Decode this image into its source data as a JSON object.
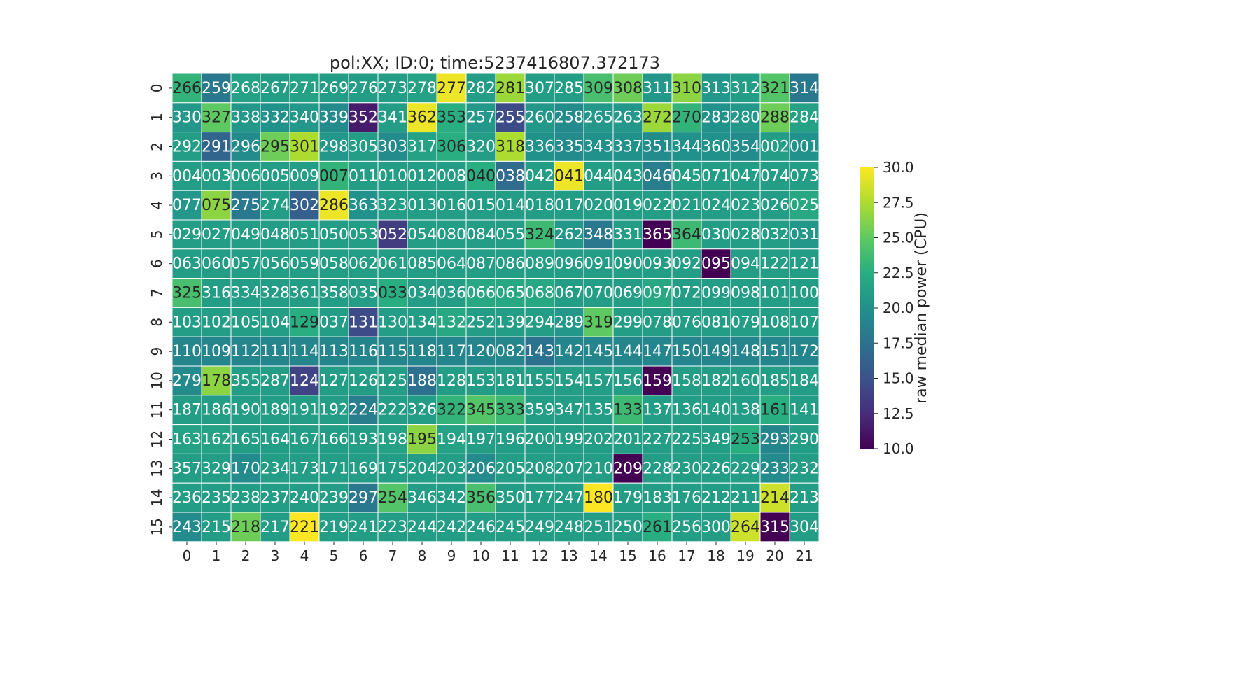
{
  "chart_data": {
    "type": "heatmap",
    "title": "pol:XX; ID:0; time:5237416807.372173",
    "xlabel": "",
    "ylabel": "",
    "x_categories": [
      "0",
      "1",
      "2",
      "3",
      "4",
      "5",
      "6",
      "7",
      "8",
      "9",
      "10",
      "11",
      "12",
      "13",
      "14",
      "15",
      "16",
      "17",
      "18",
      "19",
      "20",
      "21"
    ],
    "y_categories": [
      "0",
      "1",
      "2",
      "3",
      "4",
      "5",
      "6",
      "7",
      "8",
      "9",
      "10",
      "11",
      "12",
      "13",
      "14",
      "15"
    ],
    "colormap": "viridis",
    "colorbar": {
      "label": "raw median power (CPU)",
      "range": [
        10.0,
        30.0
      ],
      "ticks": [
        "10.0",
        "12.5",
        "15.0",
        "17.5",
        "20.0",
        "22.5",
        "25.0",
        "27.5",
        "30.0"
      ]
    },
    "annotations": [
      [
        "266",
        "259",
        "268",
        "267",
        "271",
        "269",
        "276",
        "273",
        "278",
        "277",
        "282",
        "281",
        "307",
        "285",
        "309",
        "308",
        "311",
        "310",
        "313",
        "312",
        "321",
        "314"
      ],
      [
        "330",
        "327",
        "338",
        "332",
        "340",
        "339",
        "352",
        "341",
        "362",
        "353",
        "257",
        "255",
        "260",
        "258",
        "265",
        "263",
        "272",
        "270",
        "283",
        "280",
        "288",
        "284"
      ],
      [
        "292",
        "291",
        "296",
        "295",
        "301",
        "298",
        "305",
        "303",
        "317",
        "306",
        "320",
        "318",
        "336",
        "335",
        "343",
        "337",
        "351",
        "344",
        "360",
        "354",
        "002",
        "001"
      ],
      [
        "004",
        "003",
        "006",
        "005",
        "009",
        "007",
        "011",
        "010",
        "012",
        "008",
        "040",
        "038",
        "042",
        "041",
        "044",
        "043",
        "046",
        "045",
        "071",
        "047",
        "074",
        "073"
      ],
      [
        "077",
        "075",
        "275",
        "274",
        "302",
        "286",
        "363",
        "323",
        "013",
        "016",
        "015",
        "014",
        "018",
        "017",
        "020",
        "019",
        "022",
        "021",
        "024",
        "023",
        "026",
        "025"
      ],
      [
        "029",
        "027",
        "049",
        "048",
        "051",
        "050",
        "053",
        "052",
        "054",
        "080",
        "084",
        "055",
        "324",
        "262",
        "348",
        "331",
        "365",
        "364",
        "030",
        "028",
        "032",
        "031"
      ],
      [
        "063",
        "060",
        "057",
        "056",
        "059",
        "058",
        "062",
        "061",
        "085",
        "064",
        "087",
        "086",
        "089",
        "096",
        "091",
        "090",
        "093",
        "092",
        "095",
        "094",
        "122",
        "121"
      ],
      [
        "325",
        "316",
        "334",
        "328",
        "361",
        "358",
        "035",
        "033",
        "034",
        "036",
        "066",
        "065",
        "068",
        "067",
        "070",
        "069",
        "097",
        "072",
        "099",
        "098",
        "101",
        "100"
      ],
      [
        "103",
        "102",
        "105",
        "104",
        "129",
        "037",
        "131",
        "130",
        "134",
        "132",
        "252",
        "139",
        "294",
        "289",
        "319",
        "299",
        "078",
        "076",
        "081",
        "079",
        "108",
        "107"
      ],
      [
        "110",
        "109",
        "112",
        "111",
        "114",
        "113",
        "116",
        "115",
        "118",
        "117",
        "120",
        "082",
        "143",
        "142",
        "145",
        "144",
        "147",
        "150",
        "149",
        "148",
        "151",
        "172"
      ],
      [
        "279",
        "178",
        "355",
        "287",
        "124",
        "127",
        "126",
        "125",
        "188",
        "128",
        "153",
        "181",
        "155",
        "154",
        "157",
        "156",
        "159",
        "158",
        "182",
        "160",
        "185",
        "184"
      ],
      [
        "187",
        "186",
        "190",
        "189",
        "191",
        "192",
        "224",
        "222",
        "326",
        "322",
        "345",
        "333",
        "359",
        "347",
        "135",
        "133",
        "137",
        "136",
        "140",
        "138",
        "161",
        "141"
      ],
      [
        "163",
        "162",
        "165",
        "164",
        "167",
        "166",
        "193",
        "198",
        "195",
        "194",
        "197",
        "196",
        "200",
        "199",
        "202",
        "201",
        "227",
        "225",
        "349",
        "253",
        "293",
        "290"
      ],
      [
        "357",
        "329",
        "170",
        "234",
        "173",
        "171",
        "169",
        "175",
        "204",
        "203",
        "206",
        "205",
        "208",
        "207",
        "210",
        "209",
        "228",
        "230",
        "226",
        "229",
        "233",
        "232"
      ],
      [
        "236",
        "235",
        "238",
        "237",
        "240",
        "239",
        "297",
        "254",
        "346",
        "342",
        "356",
        "350",
        "177",
        "247",
        "180",
        "179",
        "183",
        "176",
        "212",
        "211",
        "214",
        "213"
      ],
      [
        "243",
        "215",
        "218",
        "217",
        "221",
        "219",
        "241",
        "223",
        "244",
        "242",
        "246",
        "245",
        "249",
        "248",
        "251",
        "250",
        "261",
        "256",
        "300",
        "264",
        "315",
        "304"
      ]
    ],
    "values": [
      [
        23.0,
        18.0,
        21.5,
        21.0,
        21.5,
        21.0,
        21.0,
        21.0,
        21.5,
        29.5,
        21.0,
        27.0,
        21.0,
        21.0,
        24.0,
        25.5,
        20.5,
        26.5,
        20.5,
        21.0,
        24.5,
        18.0
      ],
      [
        20.5,
        25.0,
        20.5,
        20.0,
        20.5,
        19.5,
        11.5,
        21.0,
        29.5,
        22.5,
        20.5,
        14.5,
        20.5,
        19.5,
        20.5,
        20.5,
        27.0,
        23.0,
        20.0,
        20.5,
        25.5,
        21.5
      ],
      [
        21.0,
        16.5,
        19.5,
        25.5,
        27.5,
        20.5,
        21.0,
        19.5,
        21.5,
        22.5,
        21.0,
        27.5,
        20.0,
        19.5,
        20.0,
        20.0,
        19.5,
        20.0,
        20.0,
        19.5,
        21.0,
        20.0
      ],
      [
        21.0,
        21.0,
        21.0,
        21.0,
        21.0,
        23.0,
        21.0,
        21.0,
        21.0,
        21.0,
        22.5,
        17.0,
        21.0,
        29.5,
        21.0,
        21.0,
        18.5,
        21.0,
        21.0,
        21.0,
        21.0,
        21.0
      ],
      [
        20.5,
        26.5,
        18.0,
        21.0,
        16.0,
        29.5,
        20.0,
        21.0,
        21.0,
        21.0,
        21.0,
        21.0,
        21.0,
        21.0,
        21.0,
        21.0,
        21.0,
        21.0,
        21.0,
        21.0,
        21.0,
        22.0
      ],
      [
        21.0,
        21.0,
        21.0,
        21.0,
        21.0,
        21.0,
        21.0,
        13.5,
        21.0,
        21.0,
        21.0,
        21.0,
        23.5,
        20.5,
        18.0,
        21.0,
        10.0,
        23.5,
        21.0,
        21.0,
        21.0,
        20.5
      ],
      [
        21.0,
        21.0,
        21.0,
        21.0,
        21.0,
        21.0,
        21.0,
        21.0,
        21.0,
        21.0,
        21.0,
        21.0,
        21.0,
        21.0,
        21.0,
        21.0,
        21.0,
        21.0,
        10.0,
        21.0,
        21.0,
        21.0
      ],
      [
        24.0,
        21.0,
        21.0,
        21.0,
        21.0,
        21.0,
        21.0,
        22.5,
        21.0,
        21.0,
        22.0,
        22.0,
        22.0,
        21.0,
        21.0,
        21.0,
        22.0,
        21.0,
        21.0,
        21.0,
        21.0,
        21.0
      ],
      [
        21.0,
        21.0,
        21.0,
        21.0,
        22.5,
        21.0,
        14.5,
        21.0,
        21.0,
        22.0,
        21.0,
        21.0,
        21.0,
        20.5,
        25.0,
        21.0,
        21.0,
        21.0,
        21.0,
        21.0,
        21.0,
        21.0
      ],
      [
        19.0,
        19.0,
        19.0,
        19.0,
        19.0,
        19.0,
        19.0,
        19.0,
        19.0,
        19.0,
        19.0,
        19.0,
        17.5,
        19.0,
        19.0,
        19.0,
        19.0,
        19.0,
        19.0,
        19.0,
        19.0,
        19.0
      ],
      [
        19.5,
        26.5,
        21.0,
        21.0,
        14.0,
        21.0,
        21.0,
        21.0,
        17.5,
        21.0,
        21.0,
        21.0,
        21.0,
        21.0,
        21.0,
        21.0,
        10.0,
        21.0,
        21.0,
        21.0,
        21.0,
        21.0
      ],
      [
        21.0,
        21.0,
        21.0,
        21.0,
        21.0,
        21.0,
        18.5,
        21.0,
        21.0,
        23.0,
        24.5,
        23.5,
        21.0,
        21.0,
        21.0,
        23.5,
        21.0,
        21.0,
        21.0,
        21.0,
        22.5,
        21.0
      ],
      [
        21.5,
        21.5,
        21.0,
        21.0,
        21.0,
        21.0,
        21.0,
        21.5,
        26.5,
        21.5,
        21.0,
        21.0,
        21.0,
        21.0,
        21.0,
        21.0,
        21.0,
        21.0,
        21.0,
        22.5,
        19.0,
        21.0
      ],
      [
        21.0,
        21.0,
        19.5,
        21.0,
        21.0,
        21.0,
        21.0,
        21.0,
        21.0,
        21.0,
        19.5,
        21.0,
        21.0,
        21.0,
        21.0,
        10.0,
        21.0,
        21.0,
        21.0,
        21.0,
        19.5,
        21.0
      ],
      [
        21.0,
        21.0,
        21.0,
        21.0,
        21.0,
        21.0,
        18.0,
        24.5,
        21.0,
        21.0,
        24.0,
        21.0,
        21.0,
        21.0,
        30.0,
        21.0,
        21.0,
        21.0,
        21.0,
        21.0,
        28.5,
        21.0
      ],
      [
        19.5,
        21.0,
        25.5,
        21.0,
        30.0,
        21.0,
        21.0,
        21.0,
        21.0,
        21.0,
        21.0,
        21.0,
        21.0,
        21.0,
        21.0,
        21.0,
        22.5,
        21.0,
        21.0,
        28.5,
        10.0,
        21.0
      ]
    ]
  }
}
